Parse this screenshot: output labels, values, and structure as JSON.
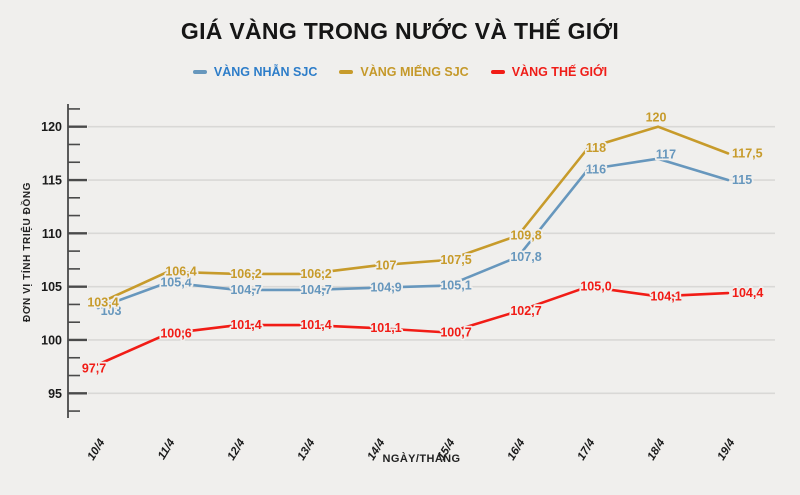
{
  "title": "GIÁ VÀNG TRONG NƯỚC VÀ THẾ GIỚI",
  "colors": {
    "background": "#f0efed",
    "gridline": "#d9d8d6",
    "axis": "#4a4a4a",
    "tick_label": "#1a1a1a",
    "title_text": "#161616"
  },
  "chart_data": {
    "type": "line",
    "title": "GIÁ VÀNG TRONG NƯỚC VÀ THẾ GIỚI",
    "xlabel": "NGÀY/THÁNG",
    "ylabel": "ĐƠN VỊ TÍNH TRIỆU ĐỒNG",
    "grid": true,
    "legend_position": "top",
    "ylim": [
      92.9,
      122.1
    ],
    "yticks_major": [
      95,
      100,
      105,
      110,
      115,
      120
    ],
    "categories": [
      "10/4",
      "11/4",
      "12/4",
      "13/4",
      "14/4",
      "15/4",
      "16/4",
      "17/4",
      "18/4",
      "19/4"
    ],
    "series": [
      {
        "id": "vang-nhan-sjc",
        "name": "VÀNG NHẪN SJC",
        "color": "#6797bd",
        "legend_text_color": "#2d7dc9",
        "values": [
          103,
          105.4,
          104.7,
          104.7,
          104.9,
          105.1,
          107.8,
          116,
          117,
          115
        ],
        "labels": [
          "103",
          "105,4",
          "104,7",
          "104,7",
          "104,9",
          "105,1",
          "107,8",
          "116",
          "117",
          "115"
        ]
      },
      {
        "id": "vang-mieng-sjc",
        "name": "VÀNG MIẾNG SJC",
        "color": "#c79b2b",
        "legend_text_color": "#c5992a",
        "values": [
          103.4,
          106.4,
          106.2,
          106.2,
          107,
          107.5,
          109.8,
          118,
          120,
          117.5
        ],
        "labels": [
          "103,4",
          "106,4",
          "106,2",
          "106,2",
          "107",
          "107,5",
          "109,8",
          "118",
          "120",
          "117,5"
        ]
      },
      {
        "id": "vang-the-gioi",
        "name": "VÀNG THẾ GIỚI",
        "color": "#f11c16",
        "legend_text_color": "#ef1d18",
        "values": [
          97.7,
          100.6,
          101.4,
          101.4,
          101.1,
          100.7,
          102.7,
          105.0,
          104.1,
          104.4
        ],
        "labels": [
          "97,7",
          "100,6",
          "101,4",
          "101,4",
          "101,1",
          "100,7",
          "102,7",
          "105,0",
          "104,1",
          "104,4"
        ]
      }
    ]
  }
}
